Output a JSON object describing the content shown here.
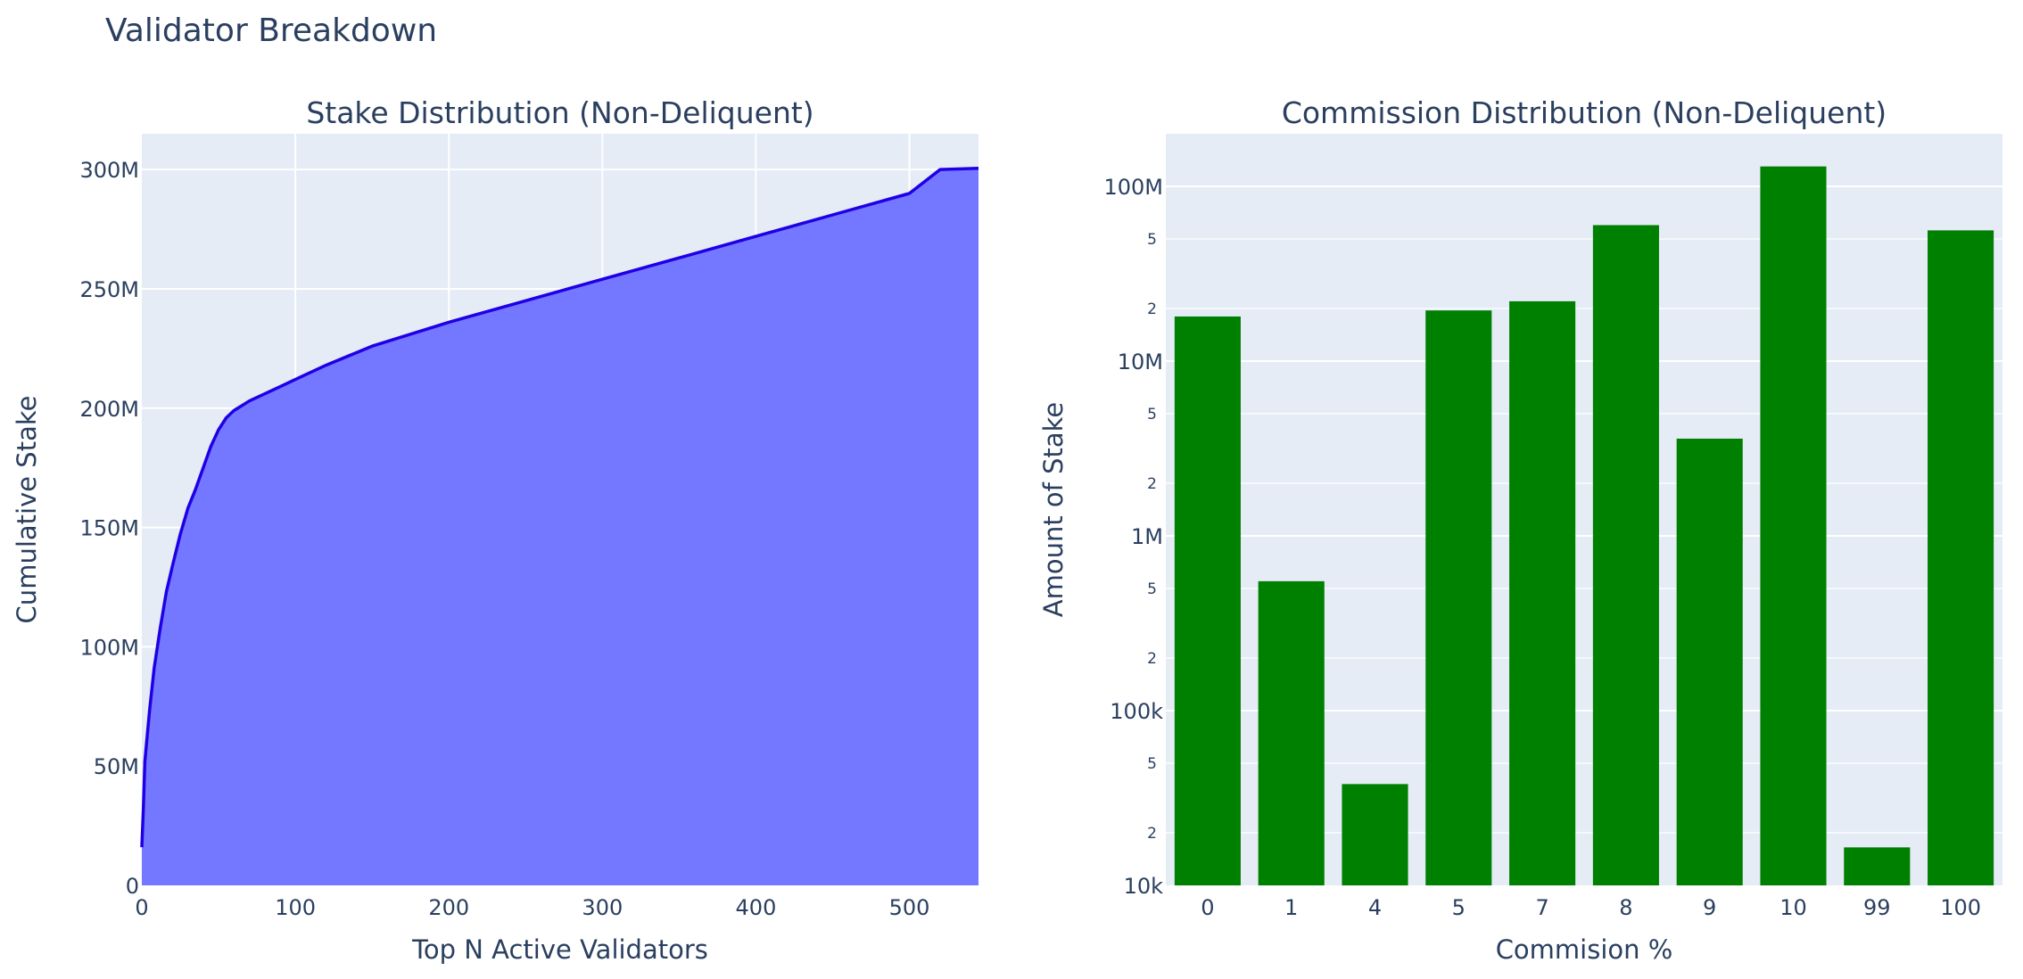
{
  "title": "Validator Breakdown",
  "colors": {
    "plot_bg": "#e5ecf6",
    "grid": "#ffffff",
    "text": "#2a3f5f",
    "line": "#1f00e6",
    "area_fill": "#7477ff",
    "bar": "#008000"
  },
  "chart_data": [
    {
      "type": "area",
      "title": "Stake Distribution (Non-Deliquent)",
      "xlabel": "Top N Active Validators",
      "ylabel": "Cumulative Stake",
      "xlim": [
        0,
        545
      ],
      "ylim": [
        0,
        315000000
      ],
      "xticks": [
        0,
        100,
        200,
        300,
        400,
        500
      ],
      "yticks": [
        0,
        50000000,
        100000000,
        150000000,
        200000000,
        250000000,
        300000000
      ],
      "ytick_labels": [
        "0",
        "50M",
        "100M",
        "150M",
        "200M",
        "250M",
        "300M"
      ],
      "x": [
        0,
        1,
        2,
        5,
        8,
        12,
        16,
        20,
        25,
        30,
        35,
        40,
        45,
        50,
        55,
        60,
        65,
        70,
        80,
        90,
        100,
        110,
        120,
        150,
        200,
        250,
        300,
        350,
        400,
        450,
        500,
        520,
        545
      ],
      "y": [
        16000000,
        32000000,
        52000000,
        73000000,
        91000000,
        108000000,
        123000000,
        134000000,
        147000000,
        158000000,
        166000000,
        175000000,
        184000000,
        191000000,
        196000000,
        199000000,
        201000000,
        203000000,
        206000000,
        209000000,
        212000000,
        215000000,
        218000000,
        226000000,
        236000000,
        245000000,
        254000000,
        263000000,
        272000000,
        281000000,
        290000000,
        300000000,
        300500000
      ]
    },
    {
      "type": "bar",
      "title": "Commission Distribution (Non-Deliquent)",
      "xlabel": "Commision %",
      "ylabel": "Amount of Stake",
      "yscale": "log",
      "ylim": [
        10000,
        200000000
      ],
      "categories": [
        "0",
        "1",
        "4",
        "5",
        "7",
        "8",
        "9",
        "10",
        "99",
        "100"
      ],
      "values": [
        18000000,
        550000,
        38000,
        19500000,
        22000000,
        60000000,
        3600000,
        130000000,
        16500,
        56000000
      ],
      "major_ticks": [
        10000,
        100000,
        1000000,
        10000000,
        100000000
      ],
      "major_tick_labels": [
        "10k",
        "100k",
        "1M",
        "10M",
        "100M"
      ],
      "minor_tick_multipliers": [
        2,
        5
      ],
      "minor_tick_labels": [
        "2",
        "5"
      ]
    }
  ]
}
